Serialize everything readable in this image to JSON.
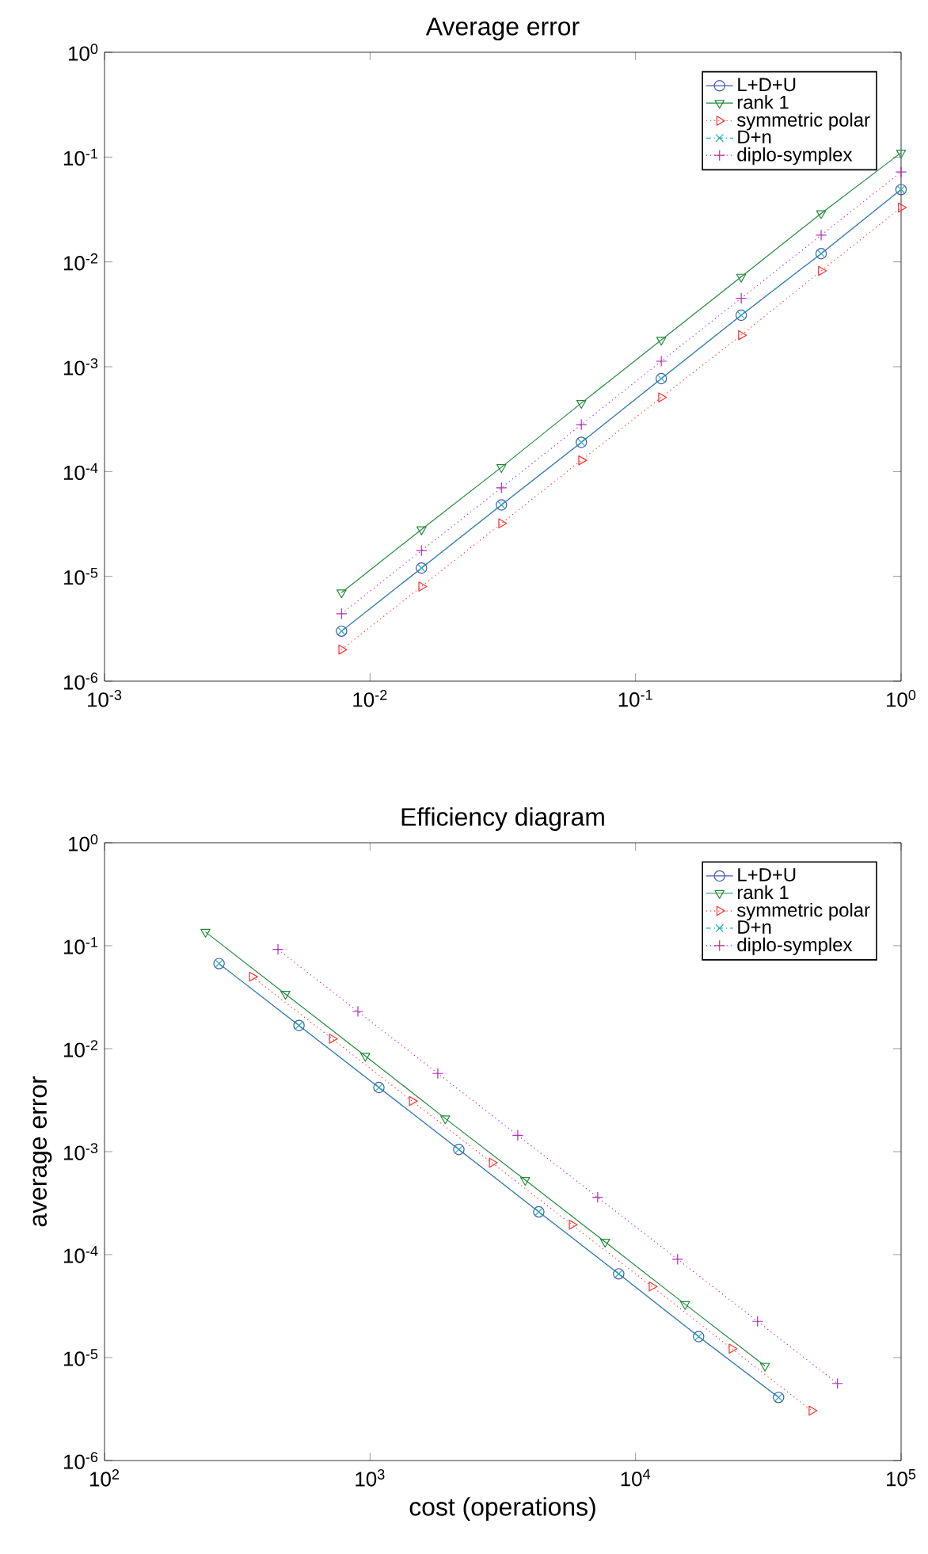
{
  "chart_data": [
    {
      "type": "line",
      "title": "Average error",
      "log": "xy",
      "legend": "top right",
      "grid": false,
      "x": [
        0.0078125,
        0.015625,
        0.03125,
        0.0625,
        0.125,
        0.25,
        0.5,
        1
      ],
      "xlim": [
        0.001,
        1
      ],
      "ylim": [
        1e-06,
        1
      ],
      "xticks": [
        {
          "value": 0.001,
          "label": "10$^{-3}$"
        },
        {
          "value": 0.01,
          "label": "10$^{-2}$"
        },
        {
          "value": 0.1,
          "label": "10$^{-1}$"
        },
        {
          "value": 1,
          "label": "10$^{0}$"
        }
      ],
      "yticks": [
        {
          "value": 1e-06,
          "label": "10$^{-6}$"
        },
        {
          "value": 1e-05,
          "label": "10$^{-5}$"
        },
        {
          "value": 0.0001,
          "label": "10$^{-4}$"
        },
        {
          "value": 0.001,
          "label": "10$^{-3}$"
        },
        {
          "value": 0.01,
          "label": "10$^{-2}$"
        },
        {
          "value": 0.1,
          "label": "10$^{-1}$"
        },
        {
          "value": 1,
          "label": "10$^{0}$"
        }
      ],
      "series": [
        {
          "name": "L+D+U",
          "color": "#4858b0",
          "line_style": "solid",
          "marker": "circle",
          "values": [
            3e-06,
            1.2e-05,
            4.8e-05,
            0.00019,
            0.00077,
            0.0031,
            0.012,
            0.049
          ]
        },
        {
          "name": "rank 1",
          "color": "#228b3b",
          "line_style": "solid",
          "marker": "triangle_down",
          "values": [
            7e-06,
            2.8e-05,
            0.00011,
            0.00045,
            0.0018,
            0.0072,
            0.029,
            0.11
          ]
        },
        {
          "name": "symmetric polar",
          "color": "#ff3030",
          "line_style": "dotted",
          "marker": "triangle_right",
          "values": [
            2e-06,
            8e-06,
            3.2e-05,
            0.000128,
            0.00051,
            0.002,
            0.0082,
            0.033
          ]
        },
        {
          "name": "D+n",
          "color": "#20b0b0",
          "line_style": "dashdot",
          "marker": "x",
          "values": [
            3e-06,
            1.2e-05,
            4.8e-05,
            0.00019,
            0.00077,
            0.0031,
            0.012,
            0.049
          ]
        },
        {
          "name": "diplo-symplex",
          "color": "#b030b0",
          "line_style": "dotted",
          "marker": "plus",
          "values": [
            4.4e-06,
            1.76e-05,
            7e-05,
            0.00028,
            0.00113,
            0.0045,
            0.018,
            0.072
          ]
        }
      ]
    },
    {
      "type": "line",
      "title": "Efficiency diagram",
      "xlabel": "cost (operations)",
      "ylabel": "average error",
      "log": "xy",
      "legend": "top right",
      "grid": false,
      "xlim": [
        100,
        100000
      ],
      "ylim": [
        1e-06,
        1
      ],
      "xticks": [
        {
          "value": 100,
          "label": "10$^{2}$"
        },
        {
          "value": 1000,
          "label": "10$^{3}$"
        },
        {
          "value": 10000,
          "label": "10$^{4}$"
        },
        {
          "value": 100000,
          "label": "10$^{5}$"
        }
      ],
      "yticks": [
        {
          "value": 1e-06,
          "label": "10$^{-6}$"
        },
        {
          "value": 1e-05,
          "label": "10$^{-5}$"
        },
        {
          "value": 0.0001,
          "label": "10$^{-4}$"
        },
        {
          "value": 0.001,
          "label": "10$^{-3}$"
        },
        {
          "value": 0.01,
          "label": "10$^{-2}$"
        },
        {
          "value": 0.1,
          "label": "10$^{-1}$"
        },
        {
          "value": 1,
          "label": "10$^{0}$"
        }
      ],
      "series": [
        {
          "name": "L+D+U",
          "color": "#4858b0",
          "line_style": "solid",
          "marker": "circle",
          "x": [
            270,
            540,
            1080,
            2160,
            4320,
            8640,
            17280,
            34560
          ],
          "values": [
            0.067,
            0.0168,
            0.0042,
            0.00105,
            0.00026,
            6.5e-05,
            1.6e-05,
            4.1e-06
          ]
        },
        {
          "name": "rank 1",
          "color": "#228b3b",
          "line_style": "solid",
          "marker": "triangle_down",
          "x": [
            240,
            480,
            960,
            1920,
            3840,
            7680,
            15360,
            30720
          ],
          "values": [
            0.136,
            0.034,
            0.0085,
            0.0021,
            0.00053,
            0.000133,
            3.3e-05,
            8.3e-06
          ]
        },
        {
          "name": "symmetric polar",
          "color": "#ff3030",
          "line_style": "dotted",
          "marker": "triangle_right",
          "x": [
            360,
            720,
            1440,
            2880,
            5760,
            11520,
            23040,
            46080
          ],
          "values": [
            0.05,
            0.0125,
            0.0031,
            0.00078,
            0.000195,
            4.9e-05,
            1.22e-05,
            3.05e-06
          ]
        },
        {
          "name": "D+n",
          "color": "#20b0b0",
          "line_style": "dashdot",
          "marker": "x",
          "x": [
            270,
            540,
            1080,
            2160,
            4320,
            8640,
            17280,
            34560
          ],
          "values": [
            0.067,
            0.0168,
            0.0042,
            0.00105,
            0.00026,
            6.5e-05,
            1.6e-05,
            4.1e-06
          ]
        },
        {
          "name": "diplo-symplex",
          "color": "#b030b0",
          "line_style": "dotted",
          "marker": "plus",
          "x": [
            450,
            900,
            1800,
            3600,
            7200,
            14400,
            28800,
            57600
          ],
          "values": [
            0.092,
            0.023,
            0.00575,
            0.00144,
            0.00036,
            9e-05,
            2.25e-05,
            5.6e-06
          ]
        }
      ]
    }
  ]
}
